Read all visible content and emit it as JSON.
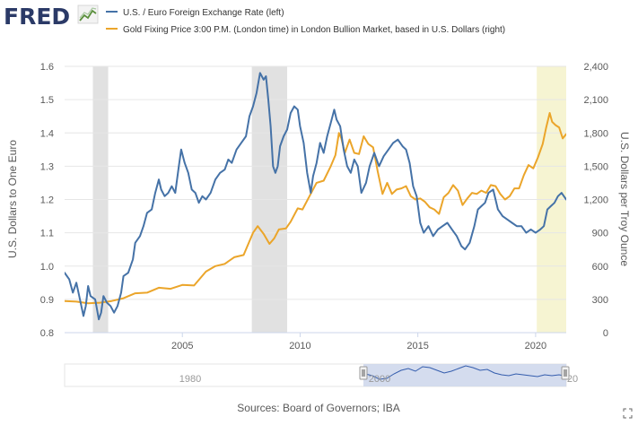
{
  "header": {
    "logo_text": "FRED"
  },
  "legend": [
    {
      "name": "U.S. / Euro Foreign Exchange Rate (left)",
      "color": "#4572a7"
    },
    {
      "name": "Gold Fixing Price 3:00 P.M. (London time) in London Bullion Market, based in U.S. Dollars (right)",
      "color": "#eba52a"
    }
  ],
  "footer": {
    "sources": "Sources: Board of Governors; IBA"
  },
  "navigator": {
    "label_1980": "1980",
    "label_2000": "2000",
    "label_2020_partial": "20"
  },
  "chart_data": {
    "type": "line",
    "title": "",
    "xlim": [
      2000.0,
      2021.3
    ],
    "x_ticks": [
      2005,
      2010,
      2015,
      2020
    ],
    "x_tick_labels": [
      "2005",
      "2010",
      "2015",
      "2020"
    ],
    "left_axis": {
      "label": "U.S. Dollars to One Euro",
      "lim": [
        0.8,
        1.6
      ],
      "ticks": [
        0.8,
        0.9,
        1.0,
        1.1,
        1.2,
        1.3,
        1.4,
        1.5,
        1.6
      ],
      "tick_labels": [
        "0.8",
        "0.9",
        "1.0",
        "1.1",
        "1.2",
        "1.3",
        "1.4",
        "1.5",
        "1.6"
      ]
    },
    "right_axis": {
      "label": "U.S. Dollars per Troy Ounce",
      "lim": [
        0,
        2400
      ],
      "ticks": [
        0,
        300,
        600,
        900,
        1200,
        1500,
        1800,
        2100,
        2400
      ],
      "tick_labels": [
        "0",
        "300",
        "600",
        "900",
        "1,200",
        "1,500",
        "1,800",
        "2,100",
        "2,400"
      ]
    },
    "grid": true,
    "recessions": [
      {
        "start": 2001.2,
        "end": 2001.85
      },
      {
        "start": 2007.95,
        "end": 2009.45
      }
    ],
    "highlight": {
      "start": 2020.05,
      "end": 2021.3
    },
    "series": [
      {
        "name": "U.S. / Euro Foreign Exchange Rate (left)",
        "axis": "left",
        "color": "#4572a7",
        "x": [
          2000.0,
          2000.2,
          2000.35,
          2000.5,
          2000.65,
          2000.8,
          2000.9,
          2001.0,
          2001.1,
          2001.3,
          2001.45,
          2001.55,
          2001.65,
          2001.8,
          2001.95,
          2002.1,
          2002.25,
          2002.4,
          2002.5,
          2002.7,
          2002.9,
          2003.0,
          2003.2,
          2003.35,
          2003.5,
          2003.7,
          2003.85,
          2004.0,
          2004.1,
          2004.25,
          2004.4,
          2004.55,
          2004.7,
          2004.85,
          2004.95,
          2005.1,
          2005.25,
          2005.4,
          2005.55,
          2005.7,
          2005.85,
          2006.0,
          2006.2,
          2006.4,
          2006.6,
          2006.8,
          2006.95,
          2007.1,
          2007.3,
          2007.5,
          2007.7,
          2007.85,
          2008.0,
          2008.15,
          2008.3,
          2008.45,
          2008.55,
          2008.65,
          2008.75,
          2008.85,
          2008.95,
          2009.05,
          2009.15,
          2009.3,
          2009.45,
          2009.6,
          2009.75,
          2009.9,
          2010.0,
          2010.15,
          2010.3,
          2010.45,
          2010.55,
          2010.7,
          2010.85,
          2011.0,
          2011.15,
          2011.3,
          2011.45,
          2011.55,
          2011.7,
          2011.85,
          2012.0,
          2012.15,
          2012.3,
          2012.45,
          2012.6,
          2012.8,
          2012.95,
          2013.15,
          2013.35,
          2013.55,
          2013.75,
          2013.95,
          2014.15,
          2014.35,
          2014.5,
          2014.65,
          2014.8,
          2014.95,
          2015.1,
          2015.25,
          2015.45,
          2015.65,
          2015.85,
          2016.05,
          2016.25,
          2016.45,
          2016.65,
          2016.85,
          2017.0,
          2017.2,
          2017.4,
          2017.55,
          2017.7,
          2017.85,
          2018.0,
          2018.2,
          2018.4,
          2018.6,
          2018.8,
          2019.0,
          2019.2,
          2019.4,
          2019.6,
          2019.8,
          2020.0,
          2020.2,
          2020.35,
          2020.5,
          2020.65,
          2020.8,
          2020.95,
          2021.1,
          2021.2,
          2021.3
        ],
        "values": [
          0.98,
          0.96,
          0.92,
          0.95,
          0.9,
          0.85,
          0.88,
          0.94,
          0.91,
          0.9,
          0.84,
          0.86,
          0.91,
          0.89,
          0.88,
          0.86,
          0.88,
          0.92,
          0.97,
          0.98,
          1.02,
          1.07,
          1.09,
          1.12,
          1.16,
          1.17,
          1.22,
          1.26,
          1.23,
          1.21,
          1.22,
          1.24,
          1.22,
          1.3,
          1.35,
          1.31,
          1.28,
          1.23,
          1.22,
          1.19,
          1.21,
          1.2,
          1.22,
          1.26,
          1.28,
          1.29,
          1.32,
          1.31,
          1.35,
          1.37,
          1.39,
          1.45,
          1.48,
          1.52,
          1.58,
          1.56,
          1.57,
          1.5,
          1.42,
          1.3,
          1.28,
          1.3,
          1.36,
          1.39,
          1.41,
          1.46,
          1.48,
          1.47,
          1.42,
          1.37,
          1.28,
          1.22,
          1.27,
          1.31,
          1.37,
          1.34,
          1.39,
          1.43,
          1.47,
          1.44,
          1.42,
          1.35,
          1.3,
          1.28,
          1.32,
          1.3,
          1.22,
          1.25,
          1.3,
          1.34,
          1.3,
          1.33,
          1.35,
          1.37,
          1.38,
          1.36,
          1.35,
          1.31,
          1.24,
          1.21,
          1.13,
          1.1,
          1.12,
          1.09,
          1.11,
          1.12,
          1.13,
          1.11,
          1.09,
          1.06,
          1.05,
          1.07,
          1.12,
          1.17,
          1.18,
          1.19,
          1.22,
          1.23,
          1.17,
          1.15,
          1.14,
          1.13,
          1.12,
          1.12,
          1.1,
          1.11,
          1.1,
          1.11,
          1.12,
          1.17,
          1.18,
          1.19,
          1.21,
          1.22,
          1.21,
          1.2
        ]
      },
      {
        "name": "Gold Fixing Price 3:00 P.M. (London time) in London Bullion Market, based in U.S. Dollars (right)",
        "axis": "right",
        "color": "#eba52a",
        "x": [
          2000.0,
          2000.5,
          2001.0,
          2001.5,
          2002.0,
          2002.5,
          2003.0,
          2003.5,
          2004.0,
          2004.5,
          2005.0,
          2005.5,
          2006.0,
          2006.4,
          2006.8,
          2007.2,
          2007.6,
          2008.0,
          2008.2,
          2008.45,
          2008.7,
          2008.9,
          2009.1,
          2009.4,
          2009.6,
          2009.9,
          2010.1,
          2010.4,
          2010.7,
          2011.0,
          2011.3,
          2011.5,
          2011.65,
          2011.75,
          2011.9,
          2012.1,
          2012.3,
          2012.5,
          2012.7,
          2012.9,
          2013.1,
          2013.3,
          2013.5,
          2013.7,
          2013.9,
          2014.1,
          2014.3,
          2014.5,
          2014.7,
          2014.9,
          2015.1,
          2015.3,
          2015.5,
          2015.7,
          2015.9,
          2016.1,
          2016.3,
          2016.5,
          2016.7,
          2016.9,
          2017.1,
          2017.3,
          2017.5,
          2017.7,
          2017.9,
          2018.1,
          2018.3,
          2018.5,
          2018.7,
          2018.9,
          2019.1,
          2019.3,
          2019.5,
          2019.7,
          2019.9,
          2020.1,
          2020.3,
          2020.45,
          2020.6,
          2020.7,
          2020.85,
          2021.0,
          2021.15,
          2021.3
        ],
        "values": [
          285,
          280,
          265,
          270,
          285,
          310,
          355,
          360,
          405,
          395,
          430,
          425,
          550,
          600,
          620,
          680,
          700,
          900,
          960,
          890,
          800,
          850,
          930,
          940,
          1000,
          1120,
          1110,
          1230,
          1350,
          1370,
          1500,
          1600,
          1800,
          1750,
          1620,
          1740,
          1620,
          1610,
          1770,
          1700,
          1670,
          1450,
          1250,
          1350,
          1250,
          1290,
          1300,
          1320,
          1230,
          1200,
          1210,
          1180,
          1130,
          1110,
          1070,
          1220,
          1260,
          1330,
          1280,
          1150,
          1210,
          1260,
          1250,
          1280,
          1260,
          1330,
          1320,
          1250,
          1200,
          1230,
          1300,
          1300,
          1420,
          1510,
          1480,
          1580,
          1700,
          1850,
          1980,
          1900,
          1870,
          1850,
          1750,
          1790
        ]
      }
    ]
  }
}
